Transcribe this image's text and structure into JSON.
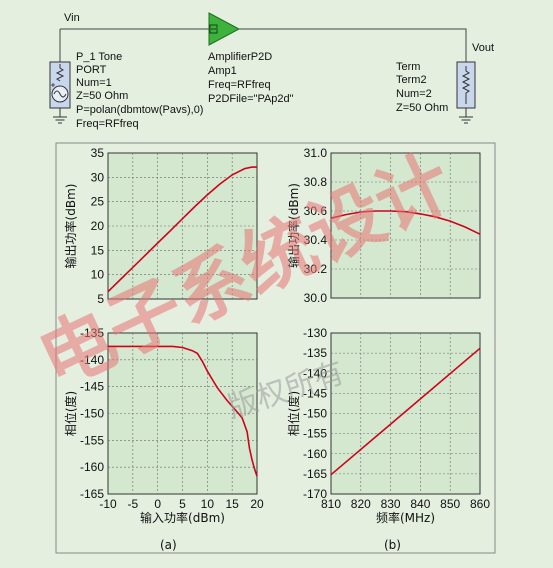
{
  "schematic": {
    "vin_label": "Vin",
    "vout_label": "Vout",
    "source": [
      "P_1 Tone",
      "PORT",
      "Num=1",
      "Z=50 Ohm",
      "P=polan(dbmtow(Pavs),0)",
      "Freq=RFfreq"
    ],
    "amplifier": [
      "AmplifierP2D",
      "Amp1",
      "Freq=RFfreq",
      "P2DFile=\"PAp2d\""
    ],
    "term": [
      "Term",
      "Term2",
      "Num=2",
      "Z=50 Ohm"
    ]
  },
  "chart_data": [
    {
      "type": "line",
      "panel": "a-top",
      "ylabel": "输出功率(dBm)",
      "xlim": [
        -10,
        20
      ],
      "ylim": [
        5,
        35
      ],
      "yticks": [
        5,
        10,
        15,
        20,
        25,
        30,
        35
      ],
      "x": [
        -10,
        -7.5,
        -5,
        -2.5,
        0,
        2.5,
        5,
        7.5,
        10,
        12.5,
        15,
        17.5,
        19,
        20
      ],
      "y": [
        6.5,
        9.0,
        11.5,
        14.0,
        16.5,
        19.0,
        21.5,
        24.0,
        26.4,
        28.6,
        30.5,
        31.8,
        32.1,
        32.1
      ]
    },
    {
      "type": "line",
      "panel": "a-bottom",
      "ylabel": "相位(度)",
      "xlabel": "输入功率(dBm)",
      "xlim": [
        -10,
        20
      ],
      "xticks": [
        -10,
        -5,
        0,
        5,
        10,
        15,
        20
      ],
      "ylim": [
        -165,
        -135
      ],
      "yticks": [
        -165,
        -160,
        -155,
        -150,
        -145,
        -140,
        -135
      ],
      "x": [
        -10,
        -5,
        0,
        3,
        5,
        7,
        8,
        9,
        10,
        12,
        14,
        16,
        17,
        18,
        18.5,
        19,
        19.5,
        20
      ],
      "y": [
        -137.5,
        -137.5,
        -137.5,
        -137.5,
        -137.7,
        -138.3,
        -138.8,
        -140.3,
        -142.1,
        -145.2,
        -147.6,
        -149.7,
        -150.8,
        -153.4,
        -156.5,
        -158.6,
        -160.3,
        -161.7
      ]
    },
    {
      "type": "line",
      "panel": "b-top",
      "ylabel": "输出功率(dBm)",
      "xlim": [
        810,
        860
      ],
      "ylim": [
        30.0,
        31.0
      ],
      "yticks": [
        "30.0",
        "30.2",
        "30.4",
        "30.6",
        "30.8",
        "31.0"
      ],
      "x": [
        810,
        815,
        820,
        825,
        830,
        835,
        840,
        845,
        850,
        855,
        860
      ],
      "y": [
        30.55,
        30.575,
        30.593,
        30.6,
        30.6,
        30.595,
        30.58,
        30.56,
        30.53,
        30.49,
        30.44
      ]
    },
    {
      "type": "line",
      "panel": "b-bottom",
      "ylabel": "相位(度)",
      "xlabel": "频率(MHz)",
      "xlim": [
        810,
        860
      ],
      "xticks": [
        810,
        820,
        830,
        840,
        850,
        860
      ],
      "ylim": [
        -170,
        -130
      ],
      "yticks": [
        -170,
        -165,
        -160,
        -155,
        -150,
        -145,
        -140,
        -135,
        -130
      ],
      "x": [
        810,
        860
      ],
      "y": [
        -165.2,
        -133.8
      ]
    }
  ],
  "captions": [
    "(a)",
    "(b)"
  ],
  "watermark": [
    "电子系统设计",
    "版权所有"
  ],
  "colors": {
    "background": "#e4efe0",
    "plot_fill": "#d4e8d0",
    "curve": "#d0021b",
    "amplifier": "#3db33d",
    "grid": "#6a6a6a"
  }
}
